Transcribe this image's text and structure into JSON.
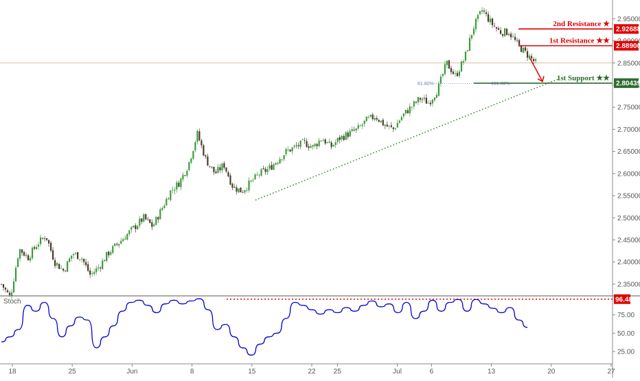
{
  "chart_data": [
    {
      "type": "candlestick",
      "symbol": "",
      "y_ticks": [
        "2.95000",
        "2.90000",
        "2.85000",
        "2.80000",
        "2.75000",
        "2.70000",
        "2.65000",
        "2.60000",
        "2.55000",
        "2.50000",
        "2.45000",
        "2.40000",
        "2.35000"
      ],
      "x_ticks": [
        "18",
        "25",
        "Jun",
        "8",
        "15",
        "22",
        "25",
        "Jul",
        "6",
        "13",
        "20",
        "27"
      ],
      "ylim": [
        2.325,
        2.98
      ],
      "approx_price_path": [
        {
          "x": "18",
          "y": 2.35
        },
        {
          "x": "19",
          "y": 2.32
        },
        {
          "x": "20",
          "y": 2.43
        },
        {
          "x": "21",
          "y": 2.41
        },
        {
          "x": "22",
          "y": 2.44
        },
        {
          "x": "23",
          "y": 2.46
        },
        {
          "x": "24",
          "y": 2.4
        },
        {
          "x": "25",
          "y": 2.38
        },
        {
          "x": "27",
          "y": 2.42
        },
        {
          "x": "28",
          "y": 2.41
        },
        {
          "x": "29",
          "y": 2.37
        },
        {
          "x": "30",
          "y": 2.39
        },
        {
          "x": "31",
          "y": 2.42
        },
        {
          "x": "Jun 1",
          "y": 2.44
        },
        {
          "x": "2",
          "y": 2.46
        },
        {
          "x": "3",
          "y": 2.48
        },
        {
          "x": "4",
          "y": 2.5
        },
        {
          "x": "5",
          "y": 2.48
        },
        {
          "x": "6",
          "y": 2.52
        },
        {
          "x": "7",
          "y": 2.56
        },
        {
          "x": "8",
          "y": 2.58
        },
        {
          "x": "9",
          "y": 2.62
        },
        {
          "x": "10",
          "y": 2.69
        },
        {
          "x": "11",
          "y": 2.63
        },
        {
          "x": "12",
          "y": 2.6
        },
        {
          "x": "13",
          "y": 2.62
        },
        {
          "x": "14",
          "y": 2.57
        },
        {
          "x": "15",
          "y": 2.56
        },
        {
          "x": "16",
          "y": 2.58
        },
        {
          "x": "17",
          "y": 2.6
        },
        {
          "x": "18",
          "y": 2.61
        },
        {
          "x": "19",
          "y": 2.63
        },
        {
          "x": "20",
          "y": 2.65
        },
        {
          "x": "21",
          "y": 2.66
        },
        {
          "x": "22",
          "y": 2.67
        },
        {
          "x": "23",
          "y": 2.66
        },
        {
          "x": "24",
          "y": 2.68
        },
        {
          "x": "25",
          "y": 2.66
        },
        {
          "x": "26",
          "y": 2.68
        },
        {
          "x": "27",
          "y": 2.69
        },
        {
          "x": "28",
          "y": 2.7
        },
        {
          "x": "29",
          "y": 2.72
        },
        {
          "x": "30",
          "y": 2.73
        },
        {
          "x": "Jul 1",
          "y": 2.71
        },
        {
          "x": "2",
          "y": 2.7
        },
        {
          "x": "3",
          "y": 2.73
        },
        {
          "x": "4",
          "y": 2.75
        },
        {
          "x": "5",
          "y": 2.77
        },
        {
          "x": "6",
          "y": 2.76
        },
        {
          "x": "7",
          "y": 2.79
        },
        {
          "x": "8",
          "y": 2.85
        },
        {
          "x": "9",
          "y": 2.82
        },
        {
          "x": "10",
          "y": 2.86
        },
        {
          "x": "11",
          "y": 2.93
        },
        {
          "x": "12",
          "y": 2.97
        },
        {
          "x": "13",
          "y": 2.94
        },
        {
          "x": "14",
          "y": 2.92
        },
        {
          "x": "15",
          "y": 2.92
        },
        {
          "x": "16",
          "y": 2.89
        },
        {
          "x": "17",
          "y": 2.87
        },
        {
          "x": "17.5",
          "y": 2.85
        }
      ],
      "horizontal_levels": [
        {
          "label": "2nd Resistance ★",
          "value": "2.92688",
          "color": "#e00000"
        },
        {
          "label": "1st Resistance ★★",
          "value": "2.88900",
          "color": "#e00000"
        },
        {
          "label": "1st Support ★★",
          "value": "2.80439",
          "color": "#2e6b2e"
        }
      ],
      "current_price_line": 2.85,
      "fib_labels": [
        "61.80%",
        "161.80%"
      ],
      "trendline": {
        "from": {
          "x": "15",
          "y": 2.54
        },
        "to": {
          "x": "20",
          "y": 2.815
        },
        "style": "dotted",
        "color": "#2e8b2e"
      },
      "projection_arrow": {
        "from": {
          "x": "17",
          "y": 2.86
        },
        "to": {
          "x": "18.5",
          "y": 2.805
        },
        "color": "#e00000"
      },
      "colors": {
        "up_candle": "#3c9a3c",
        "down_candle": "#4a3a2a",
        "resistance": "#e00000",
        "support": "#2e6b2e"
      }
    },
    {
      "type": "line",
      "indicator_label": "Stoch",
      "y_ticks": [
        "75.00",
        "50.00",
        "25.00"
      ],
      "ylim": [
        10,
        100
      ],
      "overbought_level": {
        "value": "96.48",
        "color": "#e00000"
      },
      "series": [
        {
          "color": "#0000cc",
          "points": [
            {
              "x": "18",
              "y": 38
            },
            {
              "x": "19",
              "y": 45
            },
            {
              "x": "20",
              "y": 55
            },
            {
              "x": "21",
              "y": 88
            },
            {
              "x": "22",
              "y": 80
            },
            {
              "x": "23",
              "y": 92
            },
            {
              "x": "24",
              "y": 70
            },
            {
              "x": "25",
              "y": 45
            },
            {
              "x": "26",
              "y": 60
            },
            {
              "x": "27",
              "y": 72
            },
            {
              "x": "28",
              "y": 68
            },
            {
              "x": "29",
              "y": 30
            },
            {
              "x": "30",
              "y": 45
            },
            {
              "x": "31",
              "y": 60
            },
            {
              "x": "Jun 1",
              "y": 80
            },
            {
              "x": "2",
              "y": 92
            },
            {
              "x": "3",
              "y": 95
            },
            {
              "x": "4",
              "y": 88
            },
            {
              "x": "5",
              "y": 78
            },
            {
              "x": "6",
              "y": 90
            },
            {
              "x": "7",
              "y": 95
            },
            {
              "x": "8",
              "y": 90
            },
            {
              "x": "9",
              "y": 94
            },
            {
              "x": "10",
              "y": 97
            },
            {
              "x": "11",
              "y": 82
            },
            {
              "x": "12",
              "y": 55
            },
            {
              "x": "13",
              "y": 62
            },
            {
              "x": "14",
              "y": 45
            },
            {
              "x": "15",
              "y": 30
            },
            {
              "x": "16",
              "y": 20
            },
            {
              "x": "17",
              "y": 35
            },
            {
              "x": "18",
              "y": 45
            },
            {
              "x": "19",
              "y": 50
            },
            {
              "x": "20",
              "y": 70
            },
            {
              "x": "21",
              "y": 92
            },
            {
              "x": "22",
              "y": 88
            },
            {
              "x": "23",
              "y": 82
            },
            {
              "x": "24",
              "y": 76
            },
            {
              "x": "25",
              "y": 82
            },
            {
              "x": "26",
              "y": 78
            },
            {
              "x": "27",
              "y": 85
            },
            {
              "x": "28",
              "y": 80
            },
            {
              "x": "29",
              "y": 88
            },
            {
              "x": "30",
              "y": 94
            },
            {
              "x": "Jul 1",
              "y": 86
            },
            {
              "x": "2",
              "y": 90
            },
            {
              "x": "3",
              "y": 78
            },
            {
              "x": "4",
              "y": 92
            },
            {
              "x": "5",
              "y": 70
            },
            {
              "x": "6",
              "y": 80
            },
            {
              "x": "7",
              "y": 95
            },
            {
              "x": "8",
              "y": 80
            },
            {
              "x": "9",
              "y": 92
            },
            {
              "x": "10",
              "y": 96
            },
            {
              "x": "11",
              "y": 80
            },
            {
              "x": "12",
              "y": 96
            },
            {
              "x": "13",
              "y": 90
            },
            {
              "x": "14",
              "y": 84
            },
            {
              "x": "15",
              "y": 78
            },
            {
              "x": "16",
              "y": 85
            },
            {
              "x": "17",
              "y": 68
            },
            {
              "x": "17.5",
              "y": 58
            }
          ]
        }
      ]
    }
  ]
}
